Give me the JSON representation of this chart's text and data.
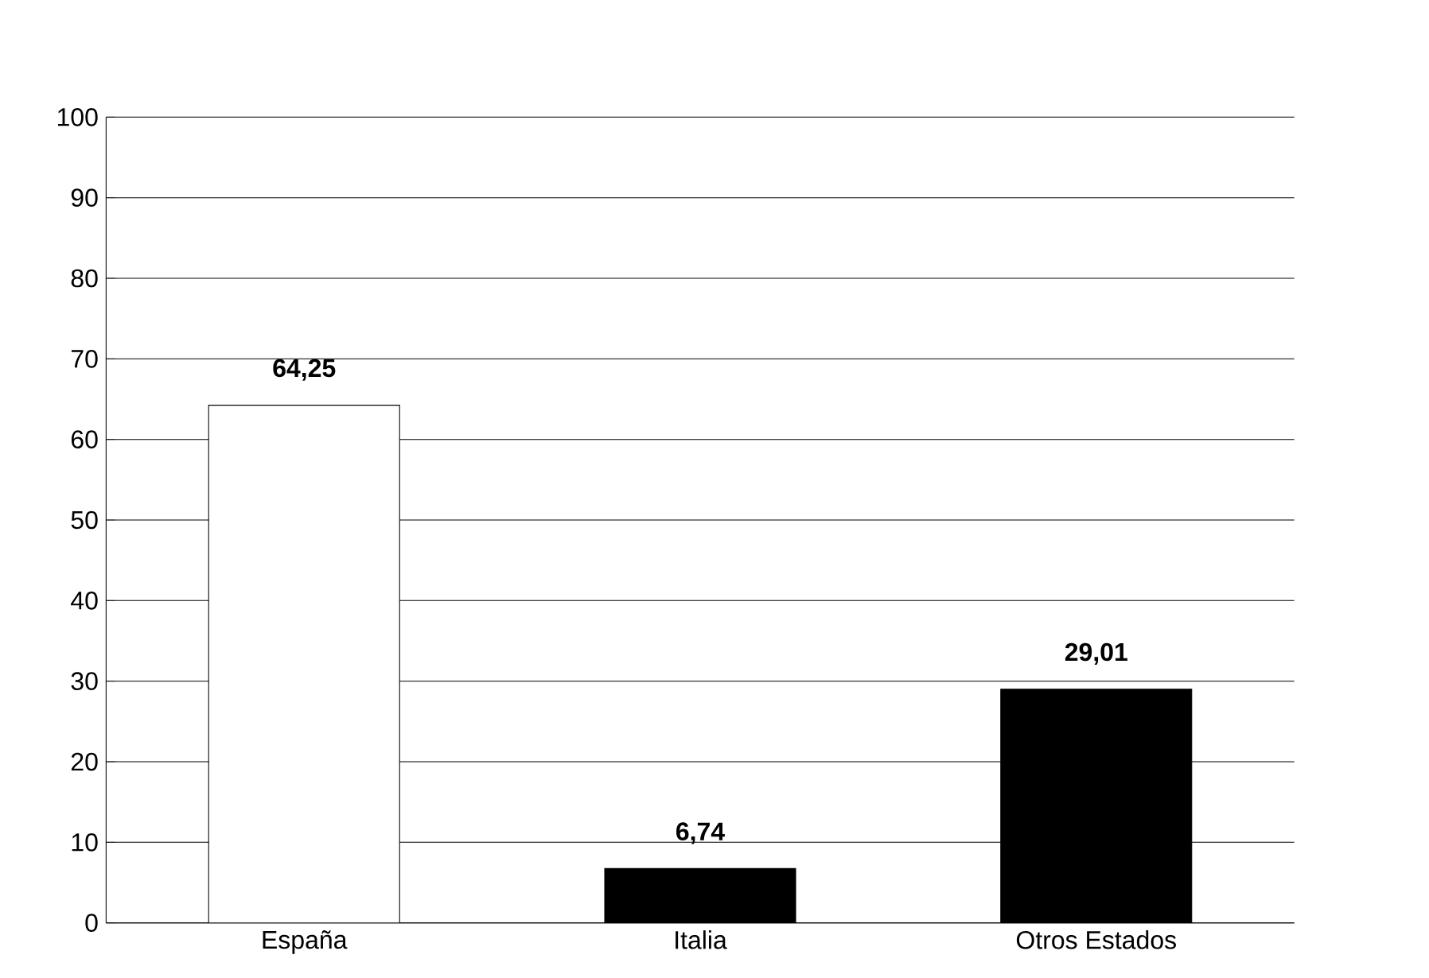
{
  "chart_data": {
    "type": "bar",
    "categories": [
      "España",
      "Italia",
      "Otros Estados"
    ],
    "values": [
      64.25,
      6.74,
      29.01
    ],
    "colors": [
      "#ffffff",
      "#000000",
      "#000000"
    ],
    "value_labels": [
      "64,25",
      "6,74",
      "29,01"
    ],
    "ylim": [
      0,
      100
    ],
    "yticks": [
      0,
      10,
      20,
      30,
      40,
      50,
      60,
      70,
      80,
      90,
      100
    ],
    "grid": "y"
  }
}
